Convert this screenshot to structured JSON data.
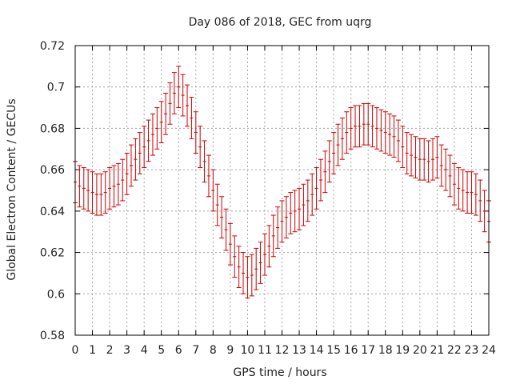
{
  "chart_data": {
    "type": "scatter",
    "title": "Day 086 of 2018, GEC from uqrg",
    "xlabel": "GPS time / hours",
    "ylabel": "Global Electron Content / GECUs",
    "xlim": [
      0,
      24
    ],
    "ylim": [
      0.58,
      0.72
    ],
    "x_ticks": [
      0,
      1,
      2,
      3,
      4,
      5,
      6,
      7,
      8,
      9,
      10,
      11,
      12,
      13,
      14,
      15,
      16,
      17,
      18,
      19,
      20,
      21,
      22,
      23,
      24
    ],
    "y_ticks": [
      0.58,
      0.6,
      0.62,
      0.64,
      0.66,
      0.68,
      0.7,
      0.72
    ],
    "y_tick_labels": [
      "0.58",
      "0.6",
      "0.62",
      "0.64",
      "0.66",
      "0.68",
      "0.7",
      "0.72"
    ],
    "grid": true,
    "error_bar_halfwidth": 0.01,
    "series": [
      {
        "color": "#cc0000",
        "x": [
          0,
          0.25,
          0.5,
          0.75,
          1,
          1.25,
          1.5,
          1.75,
          2,
          2.25,
          2.5,
          2.75,
          3,
          3.25,
          3.5,
          3.75,
          4,
          4.25,
          4.5,
          4.75,
          5,
          5.25,
          5.5,
          5.75,
          6,
          6.25,
          6.5,
          6.75,
          7,
          7.25,
          7.5,
          7.75,
          8,
          8.25,
          8.5,
          8.75,
          9,
          9.25,
          9.5,
          9.75,
          10,
          10.25,
          10.5,
          10.75,
          11,
          11.25,
          11.5,
          11.75,
          12,
          12.25,
          12.5,
          12.75,
          13,
          13.25,
          13.5,
          13.75,
          14,
          14.25,
          14.5,
          14.75,
          15,
          15.25,
          15.5,
          15.75,
          16,
          16.25,
          16.5,
          16.75,
          17,
          17.25,
          17.5,
          17.75,
          18,
          18.25,
          18.5,
          18.75,
          19,
          19.25,
          19.5,
          19.75,
          20,
          20.25,
          20.5,
          20.75,
          21,
          21.25,
          21.5,
          21.75,
          22,
          22.25,
          22.5,
          22.75,
          23,
          23.25,
          23.5,
          23.75,
          24
        ],
        "y": [
          0.654,
          0.652,
          0.651,
          0.65,
          0.649,
          0.648,
          0.648,
          0.649,
          0.651,
          0.652,
          0.653,
          0.655,
          0.658,
          0.662,
          0.665,
          0.668,
          0.671,
          0.674,
          0.677,
          0.68,
          0.683,
          0.687,
          0.692,
          0.697,
          0.7,
          0.696,
          0.691,
          0.685,
          0.678,
          0.671,
          0.664,
          0.657,
          0.65,
          0.643,
          0.637,
          0.631,
          0.624,
          0.618,
          0.613,
          0.61,
          0.608,
          0.609,
          0.612,
          0.615,
          0.619,
          0.623,
          0.628,
          0.632,
          0.635,
          0.637,
          0.639,
          0.64,
          0.641,
          0.643,
          0.645,
          0.648,
          0.651,
          0.655,
          0.659,
          0.664,
          0.668,
          0.672,
          0.675,
          0.678,
          0.68,
          0.681,
          0.681,
          0.682,
          0.682,
          0.681,
          0.68,
          0.679,
          0.678,
          0.677,
          0.676,
          0.674,
          0.671,
          0.668,
          0.667,
          0.666,
          0.665,
          0.665,
          0.664,
          0.665,
          0.666,
          0.662,
          0.66,
          0.657,
          0.653,
          0.651,
          0.65,
          0.649,
          0.649,
          0.648,
          0.645,
          0.64,
          0.635
        ]
      }
    ]
  }
}
